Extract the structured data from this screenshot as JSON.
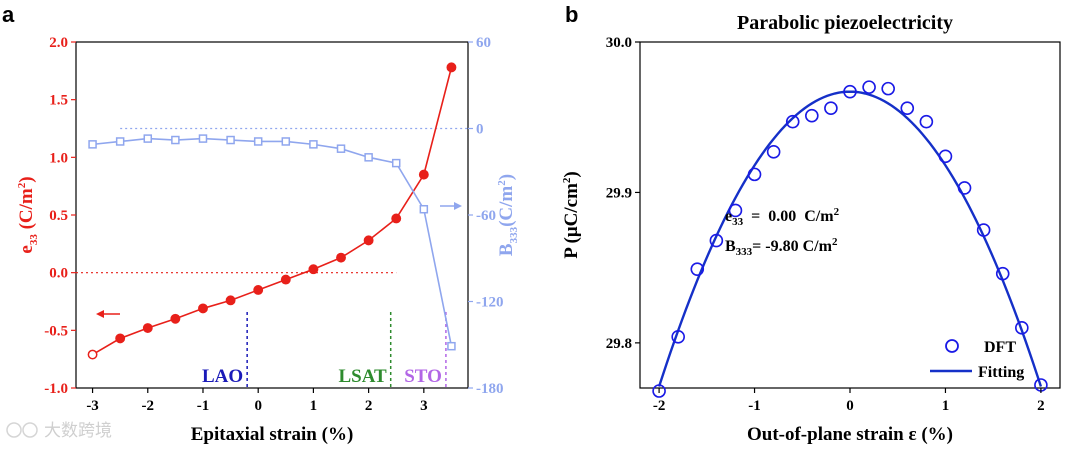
{
  "panel_a": {
    "letter": "a",
    "xlabel": "Epitaxial strain (%)",
    "ylabel_left": {
      "base": "e",
      "sub": "33",
      "rest": " (C/m",
      "sup": "2",
      "end": ")"
    },
    "ylabel_right": {
      "base": "B",
      "sub": "333",
      "rest": "(C/m",
      "sup": "2",
      "end": ")"
    },
    "xticks": [
      -3,
      -2,
      -1,
      0,
      1,
      2,
      3
    ],
    "xtick_labels": [
      "-3",
      "-2",
      "-1",
      "0",
      "1",
      "2",
      "3"
    ],
    "yticks_left": [
      -1.0,
      -0.5,
      0.0,
      0.5,
      1.0,
      1.5,
      2.0
    ],
    "ytick_labels_left": [
      "-1.0",
      "-0.5",
      "0.0",
      "0.5",
      "1.0",
      "1.5",
      "2.0"
    ],
    "yticks_right": [
      60,
      0,
      -60,
      -120,
      -180
    ],
    "ytick_labels_right": [
      "60",
      "0",
      "-60",
      "-120",
      "-180"
    ],
    "substrates": [
      {
        "label": "LAO",
        "x": -0.2,
        "color": "#1a1ab8"
      },
      {
        "label": "LSAT",
        "x": 2.4,
        "color": "#2e8b2e"
      },
      {
        "label": "STO",
        "x": 3.4,
        "color": "#b266e6"
      }
    ]
  },
  "panel_b": {
    "letter": "b",
    "title": "Parabolic piezoelectricity",
    "xlabel": "Out-of-plane strain ε (%)",
    "ylabel": {
      "base": "P (μC/cm",
      "sup": "2",
      "end": ")"
    },
    "xticks": [
      -2,
      -1,
      0,
      1,
      2
    ],
    "xtick_labels": [
      "-2",
      "-1",
      "0",
      "1",
      "2"
    ],
    "yticks": [
      29.8,
      29.9,
      30.0
    ],
    "ytick_labels": [
      "29.8",
      "29.9",
      "30.0"
    ],
    "annotation_e33": {
      "base": "e",
      "sub": "33",
      "rest": "  =  0.00  C/m",
      "sup": "2"
    },
    "annotation_b333": {
      "base": "B",
      "sub": "333",
      "rest": "= -9.80 C/m",
      "sup": "2"
    },
    "legend": {
      "dft": "DFT",
      "fit": "Fitting"
    }
  },
  "watermark": "大数跨境",
  "colors": {
    "red": "#e8201a",
    "blue_light": "#8fa6ee",
    "blue_dark": "#1530c8",
    "blue_hollow": "#1a1ae6"
  },
  "chart_data": [
    {
      "type": "line",
      "title": "",
      "xlabel": "Epitaxial strain (%)",
      "ylabel": "e33 (C/m2)",
      "xlim": [
        -3.3,
        3.8
      ],
      "ylim": [
        -1.0,
        2.0
      ],
      "y2label": "B333 (C/m2)",
      "y2lim": [
        -180,
        60
      ],
      "series": [
        {
          "name": "e33",
          "axis": "left",
          "color": "#e8201a",
          "x": [
            -3.0,
            -2.5,
            -2.0,
            -1.5,
            -1.0,
            -0.5,
            0.0,
            0.5,
            1.0,
            1.5,
            2.0,
            2.5,
            3.0,
            3.5
          ],
          "y": [
            -0.71,
            -0.57,
            -0.48,
            -0.4,
            -0.31,
            -0.24,
            -0.15,
            -0.06,
            0.03,
            0.13,
            0.28,
            0.47,
            0.85,
            1.78
          ]
        },
        {
          "name": "B333",
          "axis": "right",
          "color": "#8fa6ee",
          "x": [
            -3.0,
            -2.5,
            -2.0,
            -1.5,
            -1.0,
            -0.5,
            0.0,
            0.5,
            1.0,
            1.5,
            2.0,
            2.5,
            3.0,
            3.5
          ],
          "y": [
            -11,
            -9,
            -7,
            -8,
            -7,
            -8,
            -9,
            -9,
            -11,
            -14,
            -20,
            -24,
            -56,
            -151
          ]
        }
      ],
      "reference_lines": [
        {
          "axis": "left",
          "y": 0,
          "color": "#e8201a"
        },
        {
          "axis": "right",
          "y": 0,
          "color": "#8fa6ee"
        }
      ]
    },
    {
      "type": "scatter",
      "title": "Parabolic piezoelectricity",
      "xlabel": "Out-of-plane strain ε (%)",
      "ylabel": "P (μC/cm2)",
      "xlim": [
        -2.2,
        2.2
      ],
      "ylim": [
        29.77,
        30.0
      ],
      "series": [
        {
          "name": "DFT",
          "marker": "open-circle",
          "color": "#1a1ae6",
          "x": [
            -2.0,
            -1.8,
            -1.6,
            -1.4,
            -1.2,
            -1.0,
            -0.8,
            -0.6,
            -0.4,
            -0.2,
            0.0,
            0.2,
            0.4,
            0.6,
            0.8,
            1.0,
            1.2,
            1.4,
            1.6,
            1.8,
            2.0
          ],
          "y": [
            29.768,
            29.804,
            29.849,
            29.868,
            29.888,
            29.912,
            29.927,
            29.947,
            29.951,
            29.956,
            29.967,
            29.97,
            29.969,
            29.956,
            29.947,
            29.924,
            29.903,
            29.875,
            29.846,
            29.81,
            29.772
          ]
        },
        {
          "name": "Fitting",
          "type": "line",
          "color": "#1530c8",
          "equation": "P = 29.967 - 0.049 * eps^2",
          "x_range": [
            -2.0,
            2.0
          ]
        }
      ]
    }
  ]
}
